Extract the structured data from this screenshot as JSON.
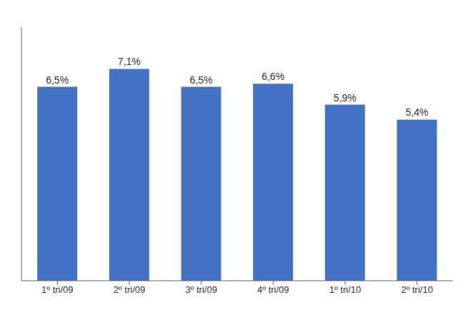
{
  "chart_data": {
    "type": "bar",
    "categories": [
      "1º tri/09",
      "2º tri/09",
      "3º tri/09",
      "4º tri/09",
      "1º tri/10",
      "2º tri/10"
    ],
    "values": [
      6.5,
      7.1,
      6.5,
      6.6,
      5.9,
      5.4
    ],
    "value_labels": [
      "6,5%",
      "7,1%",
      "6,5%",
      "6,6%",
      "5,9%",
      "5,4%"
    ],
    "color": "#4472C4",
    "ylim": [
      0,
      8.5
    ],
    "data_labels": true,
    "tick_labels": "x",
    "grid": false
  }
}
